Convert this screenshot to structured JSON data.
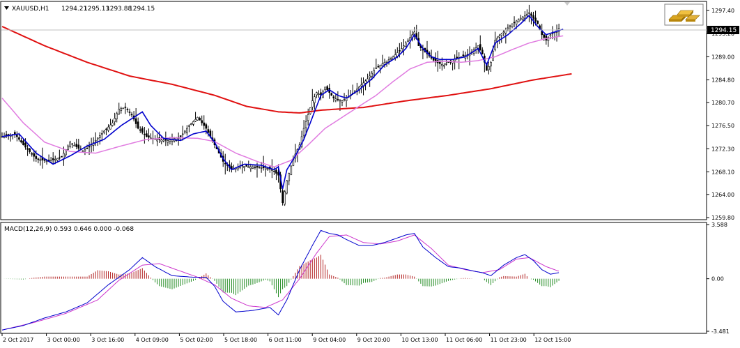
{
  "symbol_header": "XAUUSD,H1",
  "ohlc": [
    "1294.21",
    "1295.13",
    "1293.88",
    "1294.15"
  ],
  "current_price_label": "1294.15",
  "macd_header": "MACD(12,26,9) 0.593 0.646 0.000 -0.068",
  "icons": {
    "logo": "gold-bars-icon",
    "menu": "triangle-down-icon",
    "shift": "shift-marker-icon"
  },
  "colors": {
    "ma_fast": "#0000cd",
    "ma_mid": "#e07be0",
    "ma_slow": "#e01010",
    "hist_pos": "#b22222",
    "hist_neg": "#228b22",
    "macd_line": "#0000cd",
    "signal_line": "#cc33cc",
    "candle": "#000000"
  },
  "chart_data": [
    {
      "type": "candlestick",
      "title": "XAUUSD,H1",
      "y_ticks": [
        "1297.40",
        "1293.20",
        "1289.00",
        "1284.80",
        "1280.70",
        "1276.50",
        "1272.30",
        "1268.10",
        "1264.00",
        "1259.80"
      ],
      "ylim": [
        1259.8,
        1298.8
      ],
      "x_labels": [
        "2 Oct 2017",
        "3 Oct 00:00",
        "3 Oct 16:00",
        "4 Oct 09:00",
        "5 Oct 02:00",
        "5 Oct 18:00",
        "6 Oct 11:00",
        "9 Oct 04:00",
        "9 Oct 20:00",
        "10 Oct 13:00",
        "11 Oct 06:00",
        "11 Oct 23:00",
        "12 Oct 15:00"
      ],
      "close_anchors": [
        [
          0,
          1274.5
        ],
        [
          6,
          1275.0
        ],
        [
          10,
          1273.0
        ],
        [
          16,
          1270.5
        ],
        [
          22,
          1270.0
        ],
        [
          28,
          1270.8
        ],
        [
          32,
          1273.5
        ],
        [
          38,
          1271.8
        ],
        [
          42,
          1273.0
        ],
        [
          48,
          1275.5
        ],
        [
          52,
          1277.0
        ],
        [
          55,
          1279.5
        ],
        [
          58,
          1279.8
        ],
        [
          61,
          1278.5
        ],
        [
          64,
          1276.0
        ],
        [
          68,
          1274.5
        ],
        [
          72,
          1274.0
        ],
        [
          78,
          1273.8
        ],
        [
          84,
          1274.5
        ],
        [
          88,
          1276.5
        ],
        [
          92,
          1278.0
        ],
        [
          96,
          1276.0
        ],
        [
          100,
          1273.0
        ],
        [
          104,
          1270.0
        ],
        [
          108,
          1268.5
        ],
        [
          112,
          1269.2
        ],
        [
          118,
          1269.0
        ],
        [
          124,
          1268.8
        ],
        [
          127,
          1268.5
        ],
        [
          130,
          1267.5
        ],
        [
          132,
          1262.5
        ],
        [
          134,
          1266.5
        ],
        [
          137,
          1270.5
        ],
        [
          140,
          1273.0
        ],
        [
          142,
          1276.0
        ],
        [
          144,
          1278.5
        ],
        [
          146,
          1281.0
        ],
        [
          148,
          1282.5
        ],
        [
          150,
          1282.0
        ],
        [
          152,
          1283.5
        ],
        [
          156,
          1281.5
        ],
        [
          160,
          1281.0
        ],
        [
          164,
          1282.0
        ],
        [
          168,
          1283.5
        ],
        [
          172,
          1285.0
        ],
        [
          176,
          1287.0
        ],
        [
          180,
          1288.0
        ],
        [
          184,
          1289.0
        ],
        [
          188,
          1290.5
        ],
        [
          192,
          1292.5
        ],
        [
          194,
          1293.5
        ],
        [
          196,
          1291.0
        ],
        [
          200,
          1289.5
        ],
        [
          204,
          1288.0
        ],
        [
          208,
          1287.5
        ],
        [
          212,
          1288.5
        ],
        [
          216,
          1289.0
        ],
        [
          220,
          1289.5
        ],
        [
          224,
          1291.0
        ],
        [
          226,
          1289.5
        ],
        [
          228,
          1286.5
        ],
        [
          230,
          1288.0
        ],
        [
          232,
          1292.0
        ],
        [
          236,
          1293.5
        ],
        [
          240,
          1295.0
        ],
        [
          244,
          1296.0
        ],
        [
          248,
          1297.0
        ],
        [
          250,
          1296.0
        ],
        [
          252,
          1295.0
        ],
        [
          254,
          1293.0
        ],
        [
          256,
          1292.0
        ],
        [
          258,
          1293.0
        ],
        [
          260,
          1293.5
        ],
        [
          262,
          1294.15
        ]
      ],
      "ma_fast_anchors": [
        [
          0,
          1274.5
        ],
        [
          8,
          1275.0
        ],
        [
          16,
          1271.5
        ],
        [
          24,
          1269.5
        ],
        [
          32,
          1271.0
        ],
        [
          40,
          1272.8
        ],
        [
          48,
          1274.0
        ],
        [
          56,
          1276.5
        ],
        [
          62,
          1278.0
        ],
        [
          66,
          1279.0
        ],
        [
          70,
          1276.5
        ],
        [
          76,
          1274.2
        ],
        [
          84,
          1273.8
        ],
        [
          90,
          1275.0
        ],
        [
          96,
          1275.5
        ],
        [
          100,
          1273.5
        ],
        [
          104,
          1270.5
        ],
        [
          108,
          1268.5
        ],
        [
          114,
          1269.5
        ],
        [
          122,
          1269.3
        ],
        [
          128,
          1268.5
        ],
        [
          130,
          1269.0
        ],
        [
          132,
          1265.0
        ],
        [
          134,
          1268.5
        ],
        [
          138,
          1271.0
        ],
        [
          142,
          1274.0
        ],
        [
          146,
          1278.0
        ],
        [
          150,
          1282.0
        ],
        [
          154,
          1283.0
        ],
        [
          158,
          1282.0
        ],
        [
          162,
          1281.5
        ],
        [
          168,
          1283.0
        ],
        [
          174,
          1285.0
        ],
        [
          180,
          1287.5
        ],
        [
          186,
          1289.0
        ],
        [
          190,
          1290.5
        ],
        [
          194,
          1293.0
        ],
        [
          198,
          1290.5
        ],
        [
          202,
          1289.0
        ],
        [
          206,
          1288.5
        ],
        [
          212,
          1288.5
        ],
        [
          218,
          1289.0
        ],
        [
          224,
          1290.5
        ],
        [
          228,
          1287.5
        ],
        [
          232,
          1291.5
        ],
        [
          238,
          1293.0
        ],
        [
          244,
          1295.0
        ],
        [
          248,
          1296.5
        ],
        [
          252,
          1294.5
        ],
        [
          256,
          1293.0
        ],
        [
          260,
          1293.5
        ],
        [
          264,
          1294.0
        ]
      ],
      "ma_mid_anchors": [
        [
          0,
          1281.5
        ],
        [
          10,
          1277.0
        ],
        [
          20,
          1273.5
        ],
        [
          32,
          1271.8
        ],
        [
          44,
          1271.5
        ],
        [
          56,
          1272.8
        ],
        [
          68,
          1274.0
        ],
        [
          80,
          1274.3
        ],
        [
          92,
          1274.2
        ],
        [
          100,
          1273.6
        ],
        [
          110,
          1271.5
        ],
        [
          120,
          1270.0
        ],
        [
          128,
          1269.0
        ],
        [
          136,
          1270.2
        ],
        [
          144,
          1273.0
        ],
        [
          152,
          1276.0
        ],
        [
          160,
          1278.0
        ],
        [
          168,
          1280.0
        ],
        [
          176,
          1282.0
        ],
        [
          184,
          1284.5
        ],
        [
          192,
          1286.8
        ],
        [
          200,
          1288.0
        ],
        [
          208,
          1288.2
        ],
        [
          216,
          1288.0
        ],
        [
          224,
          1288.3
        ],
        [
          232,
          1289.0
        ],
        [
          240,
          1290.3
        ],
        [
          248,
          1291.5
        ],
        [
          256,
          1292.3
        ],
        [
          264,
          1292.8
        ]
      ],
      "ma_slow_anchors": [
        [
          0,
          1294.5
        ],
        [
          20,
          1291.0
        ],
        [
          40,
          1288.0
        ],
        [
          60,
          1285.5
        ],
        [
          80,
          1284.0
        ],
        [
          100,
          1282.0
        ],
        [
          115,
          1280.0
        ],
        [
          130,
          1279.0
        ],
        [
          140,
          1278.8
        ],
        [
          150,
          1279.3
        ],
        [
          170,
          1279.8
        ],
        [
          190,
          1281.0
        ],
        [
          210,
          1282.0
        ],
        [
          230,
          1283.2
        ],
        [
          250,
          1284.8
        ],
        [
          268,
          1285.9
        ]
      ]
    },
    {
      "type": "macd",
      "title": "MACD(12,26,9) 0.593 0.646 0.000 -0.068",
      "y_ticks": [
        "3.588",
        "0.00",
        "-3.481"
      ],
      "ylim": [
        -3.481,
        3.588
      ],
      "macd_anchors": [
        [
          0,
          -3.4
        ],
        [
          10,
          -3.1
        ],
        [
          20,
          -2.6
        ],
        [
          30,
          -2.2
        ],
        [
          40,
          -1.6
        ],
        [
          50,
          -0.4
        ],
        [
          60,
          0.6
        ],
        [
          66,
          1.4
        ],
        [
          72,
          0.8
        ],
        [
          80,
          0.2
        ],
        [
          90,
          0.1
        ],
        [
          96,
          0.1
        ],
        [
          100,
          -0.5
        ],
        [
          104,
          -1.5
        ],
        [
          110,
          -2.2
        ],
        [
          118,
          -2.1
        ],
        [
          126,
          -1.9
        ],
        [
          130,
          -2.4
        ],
        [
          134,
          -1.4
        ],
        [
          140,
          0.6
        ],
        [
          146,
          2.2
        ],
        [
          150,
          3.2
        ],
        [
          154,
          3.0
        ],
        [
          158,
          2.9
        ],
        [
          162,
          2.6
        ],
        [
          168,
          2.2
        ],
        [
          174,
          2.2
        ],
        [
          180,
          2.4
        ],
        [
          186,
          2.7
        ],
        [
          190,
          2.9
        ],
        [
          194,
          3.0
        ],
        [
          198,
          2.1
        ],
        [
          204,
          1.4
        ],
        [
          210,
          0.8
        ],
        [
          216,
          0.7
        ],
        [
          222,
          0.5
        ],
        [
          226,
          0.4
        ],
        [
          230,
          0.2
        ],
        [
          236,
          0.9
        ],
        [
          242,
          1.4
        ],
        [
          246,
          1.6
        ],
        [
          250,
          1.2
        ],
        [
          254,
          0.6
        ],
        [
          258,
          0.3
        ],
        [
          262,
          0.4
        ]
      ],
      "signal_anchors": [
        [
          0,
          -3.4
        ],
        [
          15,
          -2.9
        ],
        [
          30,
          -2.3
        ],
        [
          45,
          -1.4
        ],
        [
          55,
          -0.1
        ],
        [
          66,
          0.9
        ],
        [
          74,
          1.0
        ],
        [
          82,
          0.6
        ],
        [
          92,
          0.1
        ],
        [
          100,
          -0.4
        ],
        [
          108,
          -1.3
        ],
        [
          116,
          -1.8
        ],
        [
          124,
          -1.9
        ],
        [
          132,
          -1.4
        ],
        [
          140,
          0.0
        ],
        [
          148,
          1.7
        ],
        [
          154,
          2.8
        ],
        [
          162,
          2.9
        ],
        [
          170,
          2.4
        ],
        [
          178,
          2.3
        ],
        [
          186,
          2.5
        ],
        [
          194,
          2.9
        ],
        [
          202,
          2.0
        ],
        [
          210,
          0.9
        ],
        [
          218,
          0.6
        ],
        [
          226,
          0.4
        ],
        [
          234,
          0.6
        ],
        [
          242,
          1.3
        ],
        [
          248,
          1.4
        ],
        [
          256,
          0.8
        ],
        [
          262,
          0.5
        ]
      ]
    }
  ]
}
